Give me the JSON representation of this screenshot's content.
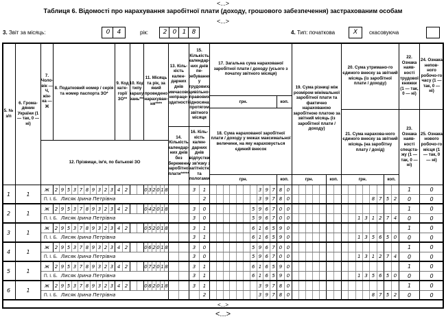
{
  "page": {
    "ellipsis_top": "<...>",
    "title": "Таблиця 6. Відомості про нарахування заробітної плати (доходу, грошового забезпечення) застрахованим особам",
    "ellipsis_mid": "<...>",
    "ellipsis_table_bottom": "<...>",
    "ellipsis_bottom": "<...>"
  },
  "form": {
    "report_num": "3.",
    "report_label": "Звіт за місяць:",
    "month_digits": [
      "0",
      "4"
    ],
    "year_label": "рік:",
    "year_digits": [
      "2",
      "0",
      "1",
      "8"
    ],
    "type_num": "4.",
    "type_label": "Тип: початкова",
    "type_initial_value": "X",
    "cancel_label": "скасовуюча",
    "cancel_value": ""
  },
  "table": {
    "headers": {
      "c5": "5. № з/п",
      "c6": "6. Грома-дянин України (1 — так, 0 — ні)",
      "c7": "7. Чоло-вік — Ч, жін-ка — Ж",
      "c8": "8. Податковий номер / серія та номер паспорта ЗО*",
      "c9": "9. Код кате-горії ЗО**",
      "c10": "10. Код типу нараху-вань***",
      "c11": "11. Місяць та рік, за який проведено нарахуван-ня****",
      "c12": "12. Прізвище, ім'я, по батькові ЗО",
      "c13": "13. Кіль-кість кален-дарних днів тимчасової непраце-здатності",
      "c14": "14. Кількість календар-них днів без збереження заробітної плати*****",
      "c15": "15. Кількість календар-них днів пе-ребування у трудових/ цивільно-правових відносинах протягом звітного місяця",
      "c16": "16. Кіль-кість кален-дарних днів відпустки у зв'язку з вагітністю та пологами",
      "c17": "17. Загальна сума нарахованої заробітної плати / доходу (усього з початку звітного місяця)",
      "c18": "18. Сума нарахованої заробітної плати / доходу у межах максимальної величини, на яку нараховується єдиний внесок",
      "c19": "19. Сума різниці між розміром мінімальної заробітної плати та фактично нарахованою заробітною платою за звітний місяць (із заробітної плати / доходу)",
      "c20": "20. Сума утримано-го єдиного внеску за звітний місяць (із заробітної плати / доходу)",
      "c21": "21. Сума нарахова-ного єдиного внеску за звітний місяць (на заробітну плату / дохід)",
      "c22": "22. Ознака наяв-ності трудової книжки (1 — так, 0 — ні)",
      "c23": "23. Ознака наяв-ності спецста-жу (1 — так, 0 — ні)",
      "c24": "24. Ознака непов-ного робочо-го часу (1 — так, 0 — ні)",
      "c25": "25. Ознака нового робочо-го місця (1 — так, 0 — ні)",
      "hrn": "грн.",
      "kop": "коп."
    },
    "pib_label": "П. І. Б.",
    "rows": [
      {
        "num": "1",
        "citizen": "1",
        "gender": "ж",
        "tax_number": "2953789323",
        "category": "42",
        "accrual_type": "",
        "month_year": "032018",
        "days_13": "",
        "days_14": "",
        "days_15": "31",
        "days_16": "2",
        "total_uah": "397",
        "total_kop": "80",
        "capped_uah": "397",
        "capped_kop": "80",
        "diff_uah": "",
        "diff_kop": "",
        "withheld_uah": "",
        "withheld_kop": "",
        "accrued_uah": "87",
        "accrued_kop": "52",
        "flag_22": "1",
        "flag_23": "0",
        "flag_24": "0",
        "flag_25": "0",
        "name": "Лисяк Ірина Петрівна"
      },
      {
        "num": "2",
        "citizen": "1",
        "gender": "ж",
        "tax_number": "2953789323",
        "category": "42",
        "accrual_type": "",
        "month_year": "042018",
        "days_13": "",
        "days_14": "",
        "days_15": "30",
        "days_16": "30",
        "total_uah": "5967",
        "total_kop": "00",
        "capped_uah": "5967",
        "capped_kop": "00",
        "diff_uah": "",
        "diff_kop": "",
        "withheld_uah": "",
        "withheld_kop": "",
        "accrued_uah": "1312",
        "accrued_kop": "74",
        "flag_22": "1",
        "flag_23": "0",
        "flag_24": "0",
        "flag_25": "0",
        "name": "Лисяк Ірина Петрівна"
      },
      {
        "num": "3",
        "citizen": "1",
        "gender": "ж",
        "tax_number": "2953789323",
        "category": "42",
        "accrual_type": "",
        "month_year": "052018",
        "days_13": "",
        "days_14": "",
        "days_15": "31",
        "days_16": "31",
        "total_uah": "6165",
        "total_kop": "90",
        "capped_uah": "6165",
        "capped_kop": "90",
        "diff_uah": "",
        "diff_kop": "",
        "withheld_uah": "",
        "withheld_kop": "",
        "accrued_uah": "1356",
        "accrued_kop": "50",
        "flag_22": "1",
        "flag_23": "0",
        "flag_24": "0",
        "flag_25": "0",
        "name": "Лисяк Ірина Петрівна"
      },
      {
        "num": "4",
        "citizen": "1",
        "gender": "ж",
        "tax_number": "2953789323",
        "category": "42",
        "accrual_type": "",
        "month_year": "062018",
        "days_13": "",
        "days_14": "",
        "days_15": "30",
        "days_16": "30",
        "total_uah": "5967",
        "total_kop": "00",
        "capped_uah": "5967",
        "capped_kop": "00",
        "diff_uah": "",
        "diff_kop": "",
        "withheld_uah": "",
        "withheld_kop": "",
        "accrued_uah": "1312",
        "accrued_kop": "74",
        "flag_22": "1",
        "flag_23": "0",
        "flag_24": "0",
        "flag_25": "0",
        "name": "Лисяк Ірина Петрівна"
      },
      {
        "num": "5",
        "citizen": "1",
        "gender": "ж",
        "tax_number": "2953789323",
        "category": "42",
        "accrual_type": "",
        "month_year": "072018",
        "days_13": "",
        "days_14": "",
        "days_15": "31",
        "days_16": "31",
        "total_uah": "6165",
        "total_kop": "90",
        "capped_uah": "6165",
        "capped_kop": "90",
        "diff_uah": "",
        "diff_kop": "",
        "withheld_uah": "",
        "withheld_kop": "",
        "accrued_uah": "1356",
        "accrued_kop": "50",
        "flag_22": "1",
        "flag_23": "0",
        "flag_24": "0",
        "flag_25": "0",
        "name": "Лисяк Ірина Петрівна"
      },
      {
        "num": "6",
        "citizen": "1",
        "gender": "ж",
        "tax_number": "2953789323",
        "category": "42",
        "accrual_type": "",
        "month_year": "082018",
        "days_13": "",
        "days_14": "",
        "days_15": "31",
        "days_16": "2",
        "total_uah": "397",
        "total_kop": "80",
        "capped_uah": "397",
        "capped_kop": "80",
        "diff_uah": "",
        "diff_kop": "",
        "withheld_uah": "",
        "withheld_kop": "",
        "accrued_uah": "87",
        "accrued_kop": "52",
        "flag_22": "1",
        "flag_23": "0",
        "flag_24": "0",
        "flag_25": "0",
        "name": "Лисяк Ірина Петрівна"
      }
    ]
  }
}
